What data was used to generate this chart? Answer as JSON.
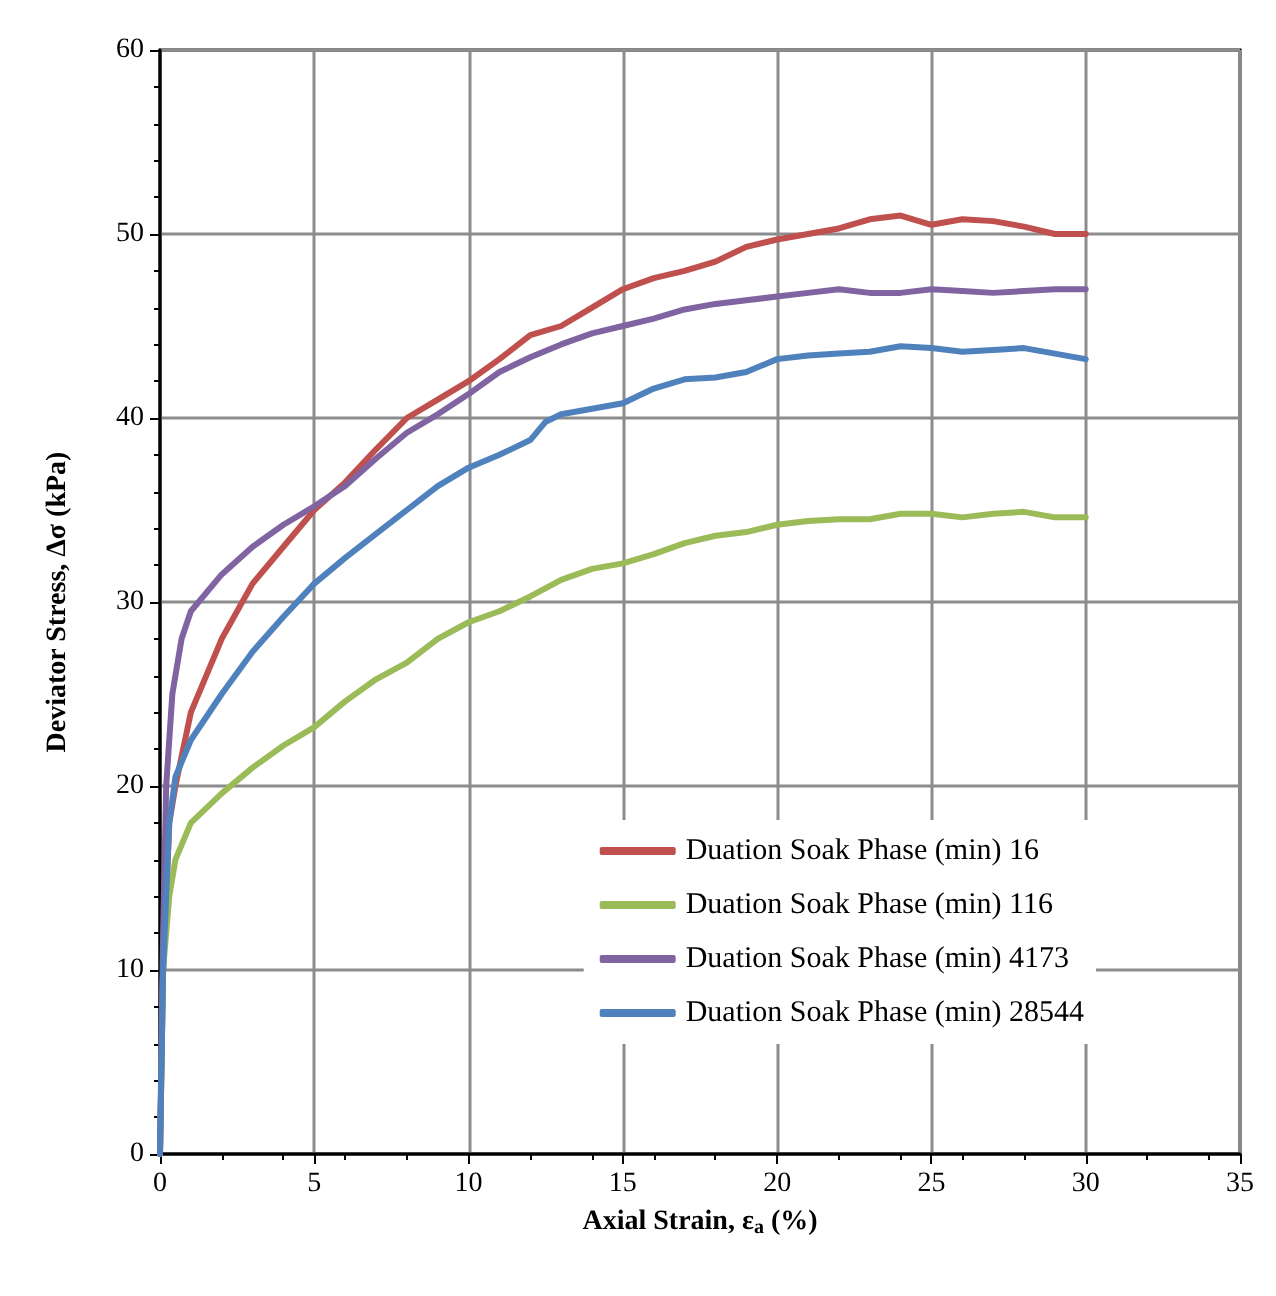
{
  "chart_data": {
    "type": "line",
    "xlabel": "Axial Strain, ε$_{a}$ (%)",
    "ylabel": "Deviator Stress, Δσ (kPa)",
    "xlim": [
      0,
      35
    ],
    "xticks": [
      0,
      5,
      10,
      15,
      20,
      25,
      30,
      35
    ],
    "ylim": [
      0,
      60
    ],
    "yticks": [
      0,
      10,
      20,
      30,
      40,
      50,
      60
    ],
    "grid": true,
    "legend": "bottom right",
    "marker": "none",
    "line_style": "solid",
    "series": [
      {
        "name": "Duation Soak Phase (min) 16",
        "color": "#c0504d",
        "x": [
          0,
          0.1,
          0.3,
          0.5,
          1,
          2,
          3,
          4,
          5,
          6,
          7,
          8,
          9,
          10,
          11,
          12,
          13,
          14,
          15,
          16,
          17,
          18,
          19,
          20,
          21,
          22,
          23,
          24,
          25,
          26,
          27,
          28,
          29,
          30
        ],
        "values": [
          0,
          10,
          18,
          20,
          24,
          28,
          31,
          33,
          35,
          36.5,
          38.3,
          40,
          41,
          42,
          43.2,
          44.5,
          45,
          46,
          47,
          47.6,
          48,
          48.5,
          49.3,
          49.7,
          50,
          50.3,
          50.8,
          51,
          50.5,
          50.8,
          50.7,
          50.4,
          50,
          50
        ]
      },
      {
        "name": "Duation Soak Phase (min) 116",
        "color": "#9bbb59",
        "x": [
          0,
          0.1,
          0.3,
          0.5,
          1,
          2,
          3,
          4,
          5,
          6,
          7,
          8,
          9,
          10,
          11,
          12,
          13,
          14,
          15,
          16,
          17,
          18,
          19,
          20,
          21,
          22,
          23,
          24,
          25,
          26,
          27,
          28,
          29,
          30
        ],
        "values": [
          0,
          10,
          14,
          16,
          18,
          19.6,
          21,
          22.2,
          23.2,
          24.6,
          25.8,
          26.7,
          28,
          28.9,
          29.5,
          30.3,
          31.2,
          31.8,
          32.1,
          32.6,
          33.2,
          33.6,
          33.8,
          34.2,
          34.4,
          34.5,
          34.5,
          34.8,
          34.8,
          34.6,
          34.8,
          34.9,
          34.6,
          34.6
        ]
      },
      {
        "name": "Duation Soak Phase (min) 4173",
        "color": "#8064a2",
        "x": [
          0,
          0.1,
          0.2,
          0.4,
          0.7,
          1,
          2,
          3,
          4,
          5,
          6,
          7,
          8,
          9,
          10,
          11,
          12,
          13,
          14,
          15,
          16,
          17,
          18,
          19,
          20,
          21,
          22,
          23,
          24,
          25,
          26,
          27,
          28,
          29,
          30
        ],
        "values": [
          0,
          12,
          20,
          25,
          28,
          29.5,
          31.5,
          33,
          34.2,
          35.2,
          36.3,
          37.8,
          39.2,
          40.2,
          41.3,
          42.5,
          43.3,
          44,
          44.6,
          45,
          45.4,
          45.9,
          46.2,
          46.4,
          46.6,
          46.8,
          47,
          46.8,
          46.8,
          47,
          46.9,
          46.8,
          46.9,
          47,
          47
        ]
      },
      {
        "name": "Duation Soak Phase (min) 28544",
        "color": "#4f81bd",
        "x": [
          0,
          0.1,
          0.3,
          0.5,
          1,
          2,
          3,
          4,
          5,
          6,
          7,
          8,
          9,
          10,
          11,
          12,
          12.5,
          13,
          14,
          15,
          16,
          17,
          18,
          19,
          20,
          21,
          22,
          23,
          24,
          25,
          26,
          27,
          28,
          29,
          30
        ],
        "values": [
          0,
          10,
          18,
          20.5,
          22.5,
          25,
          27.3,
          29.2,
          31,
          32.4,
          33.7,
          35,
          36.3,
          37.3,
          38,
          38.8,
          39.8,
          40.2,
          40.5,
          40.8,
          41.6,
          42.1,
          42.2,
          42.5,
          43.2,
          43.4,
          43.5,
          43.6,
          43.9,
          43.8,
          43.6,
          43.7,
          43.8,
          43.5,
          43.2
        ]
      }
    ]
  }
}
